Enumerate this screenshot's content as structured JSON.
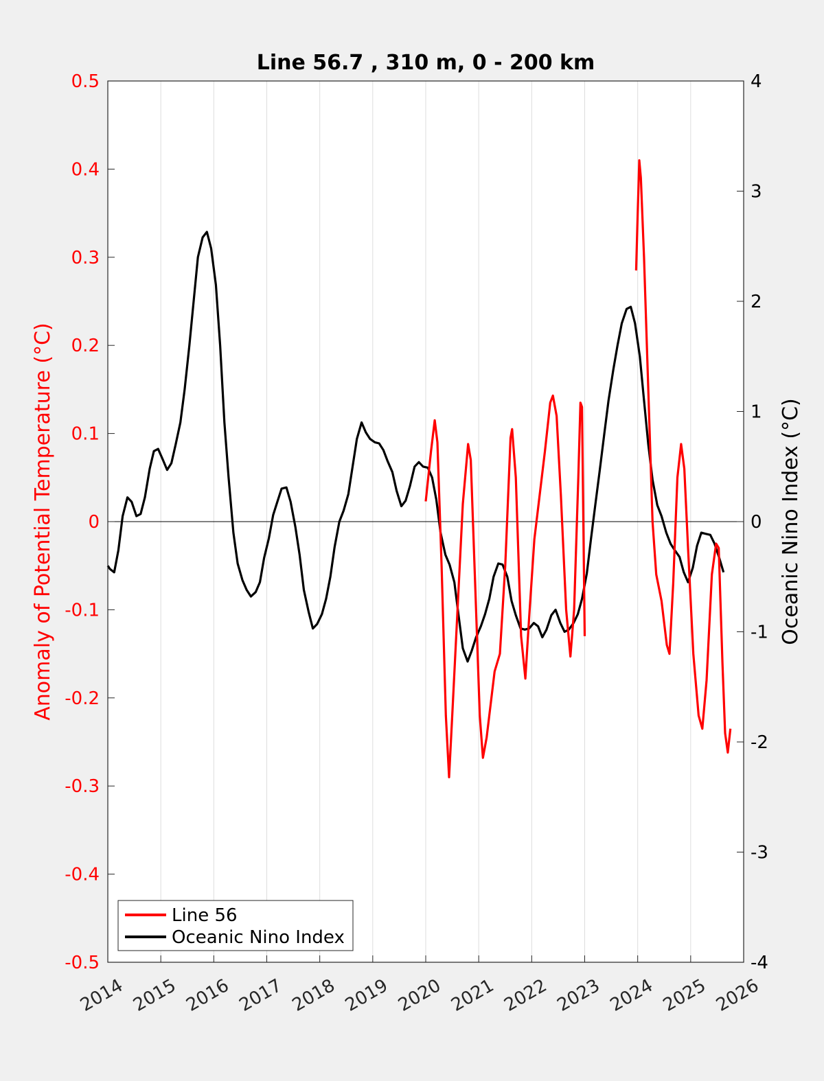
{
  "chart_data": {
    "type": "line",
    "title": "Line 56.7 , 310 m, 0 - 200 km",
    "ylabel_left": "Anomaly of Potential Temperature (°C)",
    "ylabel_right": "Oceanic Nino Index (°C)",
    "xlabel": "",
    "xlim": [
      2014,
      2026
    ],
    "ylim_left": [
      -0.5,
      0.5
    ],
    "ylim_right": [
      -4,
      4
    ],
    "x_ticks": [
      "2014",
      "2015",
      "2016",
      "2017",
      "2018",
      "2019",
      "2020",
      "2021",
      "2022",
      "2023",
      "2024",
      "2025",
      "2026"
    ],
    "y_ticks_left": [
      "0.5",
      "0.4",
      "0.3",
      "0.2",
      "0.1",
      "0",
      "-0.1",
      "-0.2",
      "-0.3",
      "-0.4",
      "-0.5"
    ],
    "y_ticks_right": [
      "4",
      "3",
      "2",
      "1",
      "0",
      "-1",
      "-2",
      "-3",
      "-4"
    ],
    "grid_x": true,
    "legend_position": "bottom-left",
    "colors": {
      "line56": "#ff0000",
      "oni": "#000000",
      "left_axis": "#ff0000",
      "right_axis": "#000000"
    },
    "series": [
      {
        "name": "Line 56",
        "axis": "left",
        "color": "#ff0000",
        "segments": [
          [
            [
              2020.0,
              0.023
            ],
            [
              2020.1,
              0.08
            ],
            [
              2020.17,
              0.115
            ],
            [
              2020.22,
              0.09
            ],
            [
              2020.3,
              -0.05
            ],
            [
              2020.38,
              -0.22
            ],
            [
              2020.44,
              -0.29
            ],
            [
              2020.5,
              -0.22
            ],
            [
              2020.6,
              -0.1
            ],
            [
              2020.7,
              0.02
            ],
            [
              2020.8,
              0.088
            ],
            [
              2020.85,
              0.07
            ],
            [
              2020.95,
              -0.1
            ],
            [
              2021.02,
              -0.22
            ],
            [
              2021.08,
              -0.268
            ],
            [
              2021.15,
              -0.245
            ],
            [
              2021.3,
              -0.17
            ],
            [
              2021.4,
              -0.15
            ],
            [
              2021.5,
              -0.05
            ],
            [
              2021.6,
              0.095
            ],
            [
              2021.63,
              0.105
            ],
            [
              2021.7,
              0.05
            ],
            [
              2021.8,
              -0.13
            ],
            [
              2021.88,
              -0.178
            ],
            [
              2021.95,
              -0.11
            ],
            [
              2022.05,
              -0.02
            ],
            [
              2022.15,
              0.03
            ],
            [
              2022.25,
              0.08
            ],
            [
              2022.35,
              0.135
            ],
            [
              2022.4,
              0.143
            ],
            [
              2022.47,
              0.12
            ],
            [
              2022.55,
              0.03
            ],
            [
              2022.65,
              -0.1
            ],
            [
              2022.73,
              -0.153
            ],
            [
              2022.8,
              -0.1
            ],
            [
              2022.88,
              0.05
            ],
            [
              2022.92,
              0.135
            ],
            [
              2022.95,
              0.13
            ],
            [
              2023.0,
              -0.13
            ]
          ],
          [
            [
              2023.97,
              0.285
            ],
            [
              2024.0,
              0.35
            ],
            [
              2024.03,
              0.41
            ],
            [
              2024.06,
              0.39
            ],
            [
              2024.12,
              0.3
            ],
            [
              2024.2,
              0.15
            ],
            [
              2024.28,
              0.0
            ],
            [
              2024.35,
              -0.06
            ],
            [
              2024.45,
              -0.09
            ],
            [
              2024.55,
              -0.14
            ],
            [
              2024.6,
              -0.15
            ],
            [
              2024.67,
              -0.07
            ],
            [
              2024.75,
              0.05
            ],
            [
              2024.82,
              0.088
            ],
            [
              2024.88,
              0.06
            ],
            [
              2024.95,
              -0.03
            ],
            [
              2025.05,
              -0.15
            ],
            [
              2025.15,
              -0.22
            ],
            [
              2025.22,
              -0.235
            ],
            [
              2025.3,
              -0.18
            ],
            [
              2025.4,
              -0.06
            ],
            [
              2025.48,
              -0.025
            ],
            [
              2025.53,
              -0.03
            ],
            [
              2025.6,
              -0.16
            ],
            [
              2025.65,
              -0.24
            ],
            [
              2025.7,
              -0.262
            ],
            [
              2025.75,
              -0.235
            ]
          ]
        ]
      },
      {
        "name": "Oceanic Nino Index",
        "axis": "right",
        "color": "#000000",
        "points": [
          [
            2014.0,
            -0.4
          ],
          [
            2014.04,
            -0.43
          ],
          [
            2014.12,
            -0.46
          ],
          [
            2014.2,
            -0.26
          ],
          [
            2014.28,
            0.05
          ],
          [
            2014.37,
            0.22
          ],
          [
            2014.45,
            0.18
          ],
          [
            2014.54,
            0.05
          ],
          [
            2014.62,
            0.07
          ],
          [
            2014.7,
            0.22
          ],
          [
            2014.79,
            0.48
          ],
          [
            2014.87,
            0.64
          ],
          [
            2014.95,
            0.66
          ],
          [
            2015.04,
            0.56
          ],
          [
            2015.12,
            0.47
          ],
          [
            2015.2,
            0.53
          ],
          [
            2015.28,
            0.7
          ],
          [
            2015.37,
            0.9
          ],
          [
            2015.45,
            1.2
          ],
          [
            2015.54,
            1.6
          ],
          [
            2015.62,
            2.0
          ],
          [
            2015.7,
            2.4
          ],
          [
            2015.79,
            2.58
          ],
          [
            2015.87,
            2.63
          ],
          [
            2015.95,
            2.48
          ],
          [
            2016.04,
            2.15
          ],
          [
            2016.12,
            1.6
          ],
          [
            2016.2,
            0.9
          ],
          [
            2016.28,
            0.4
          ],
          [
            2016.37,
            -0.1
          ],
          [
            2016.45,
            -0.38
          ],
          [
            2016.54,
            -0.53
          ],
          [
            2016.62,
            -0.62
          ],
          [
            2016.7,
            -0.68
          ],
          [
            2016.79,
            -0.64
          ],
          [
            2016.87,
            -0.55
          ],
          [
            2016.95,
            -0.33
          ],
          [
            2017.04,
            -0.15
          ],
          [
            2017.12,
            0.06
          ],
          [
            2017.2,
            0.18
          ],
          [
            2017.28,
            0.3
          ],
          [
            2017.37,
            0.31
          ],
          [
            2017.45,
            0.18
          ],
          [
            2017.54,
            -0.05
          ],
          [
            2017.62,
            -0.3
          ],
          [
            2017.7,
            -0.62
          ],
          [
            2017.79,
            -0.82
          ],
          [
            2017.87,
            -0.97
          ],
          [
            2017.95,
            -0.93
          ],
          [
            2018.04,
            -0.84
          ],
          [
            2018.12,
            -0.7
          ],
          [
            2018.2,
            -0.5
          ],
          [
            2018.28,
            -0.23
          ],
          [
            2018.37,
            0.0
          ],
          [
            2018.45,
            0.1
          ],
          [
            2018.54,
            0.25
          ],
          [
            2018.62,
            0.5
          ],
          [
            2018.7,
            0.75
          ],
          [
            2018.79,
            0.9
          ],
          [
            2018.87,
            0.81
          ],
          [
            2018.95,
            0.75
          ],
          [
            2019.04,
            0.72
          ],
          [
            2019.12,
            0.71
          ],
          [
            2019.2,
            0.65
          ],
          [
            2019.28,
            0.55
          ],
          [
            2019.37,
            0.45
          ],
          [
            2019.45,
            0.28
          ],
          [
            2019.54,
            0.14
          ],
          [
            2019.62,
            0.19
          ],
          [
            2019.7,
            0.32
          ],
          [
            2019.79,
            0.5
          ],
          [
            2019.87,
            0.54
          ],
          [
            2019.95,
            0.5
          ],
          [
            2020.04,
            0.49
          ],
          [
            2020.12,
            0.4
          ],
          [
            2020.2,
            0.2
          ],
          [
            2020.28,
            -0.1
          ],
          [
            2020.37,
            -0.3
          ],
          [
            2020.45,
            -0.39
          ],
          [
            2020.54,
            -0.55
          ],
          [
            2020.62,
            -0.85
          ],
          [
            2020.7,
            -1.15
          ],
          [
            2020.79,
            -1.27
          ],
          [
            2020.87,
            -1.17
          ],
          [
            2020.95,
            -1.05
          ],
          [
            2021.04,
            -0.95
          ],
          [
            2021.12,
            -0.84
          ],
          [
            2021.2,
            -0.7
          ],
          [
            2021.28,
            -0.5
          ],
          [
            2021.37,
            -0.38
          ],
          [
            2021.45,
            -0.39
          ],
          [
            2021.54,
            -0.5
          ],
          [
            2021.62,
            -0.72
          ],
          [
            2021.7,
            -0.85
          ],
          [
            2021.79,
            -0.97
          ],
          [
            2021.87,
            -0.98
          ],
          [
            2021.95,
            -0.97
          ],
          [
            2022.04,
            -0.92
          ],
          [
            2022.12,
            -0.95
          ],
          [
            2022.2,
            -1.05
          ],
          [
            2022.28,
            -0.98
          ],
          [
            2022.37,
            -0.85
          ],
          [
            2022.45,
            -0.8
          ],
          [
            2022.54,
            -0.92
          ],
          [
            2022.62,
            -1.0
          ],
          [
            2022.7,
            -0.98
          ],
          [
            2022.79,
            -0.92
          ],
          [
            2022.87,
            -0.84
          ],
          [
            2022.95,
            -0.7
          ],
          [
            2023.04,
            -0.47
          ],
          [
            2023.12,
            -0.15
          ],
          [
            2023.2,
            0.15
          ],
          [
            2023.28,
            0.45
          ],
          [
            2023.37,
            0.8
          ],
          [
            2023.45,
            1.1
          ],
          [
            2023.54,
            1.38
          ],
          [
            2023.62,
            1.6
          ],
          [
            2023.7,
            1.8
          ],
          [
            2023.79,
            1.93
          ],
          [
            2023.87,
            1.95
          ],
          [
            2023.95,
            1.8
          ],
          [
            2024.04,
            1.5
          ],
          [
            2024.12,
            1.1
          ],
          [
            2024.2,
            0.7
          ],
          [
            2024.28,
            0.38
          ],
          [
            2024.37,
            0.15
          ],
          [
            2024.45,
            0.05
          ],
          [
            2024.54,
            -0.1
          ],
          [
            2024.62,
            -0.2
          ],
          [
            2024.7,
            -0.26
          ],
          [
            2024.79,
            -0.32
          ],
          [
            2024.87,
            -0.46
          ],
          [
            2024.95,
            -0.55
          ],
          [
            2025.04,
            -0.42
          ],
          [
            2025.12,
            -0.22
          ],
          [
            2025.2,
            -0.1
          ],
          [
            2025.28,
            -0.11
          ],
          [
            2025.37,
            -0.12
          ],
          [
            2025.45,
            -0.2
          ],
          [
            2025.54,
            -0.33
          ],
          [
            2025.62,
            -0.46
          ]
        ]
      }
    ]
  }
}
